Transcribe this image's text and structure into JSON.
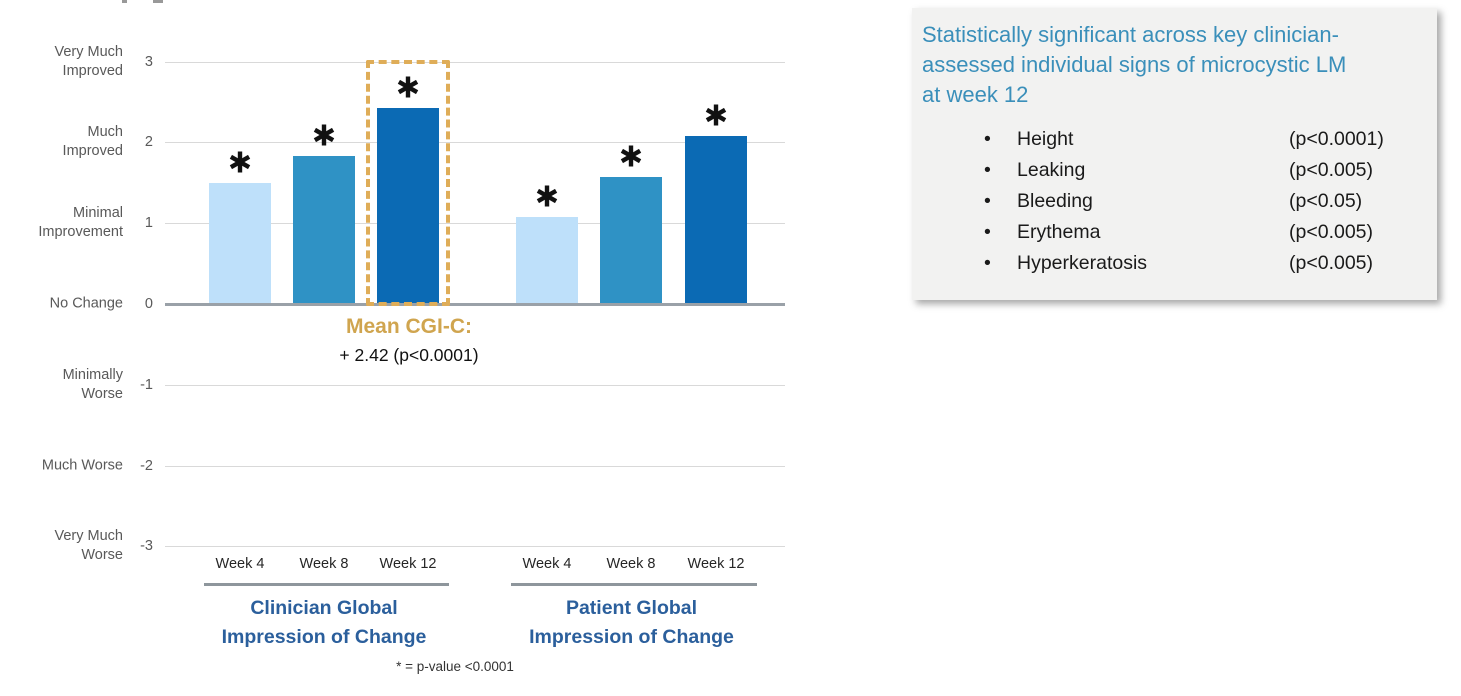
{
  "colors": {
    "bar_week4": "#BEE0FA",
    "bar_week8": "#2F92C5",
    "bar_week12": "#0B6AB4",
    "gridline": "#D9D9D9",
    "baseline": "#9AA1A8",
    "axis_text": "#595959",
    "group_title_blue": "#2B5F9C",
    "gold_dash": "#DFAD58",
    "gold_text": "#D0A54F",
    "callout_bg": "#F2F2F1",
    "callout_heading_blue": "#3A8FBA"
  },
  "chart_data": {
    "type": "bar",
    "y_axis": {
      "min": -3,
      "max": 3,
      "ticks": [
        {
          "value": 3,
          "label": "Very Much\nImproved"
        },
        {
          "value": 2,
          "label": "Much\nImproved"
        },
        {
          "value": 1,
          "label": "Minimal\nImprovement"
        },
        {
          "value": 0,
          "label": "No Change"
        },
        {
          "value": -1,
          "label": "Minimally\nWorse"
        },
        {
          "value": -2,
          "label": "Much Worse"
        },
        {
          "value": -3,
          "label": "Very Much\nWorse"
        }
      ]
    },
    "bar_palette": [
      "#BEE0FA",
      "#2F92C5",
      "#0B6AB4"
    ],
    "groups": [
      {
        "title": "Clinician Global\nImpression of Change",
        "bars": [
          {
            "category": "Week 4",
            "value": 1.5,
            "significant": true
          },
          {
            "category": "Week 8",
            "value": 1.83,
            "significant": true
          },
          {
            "category": "Week 12",
            "value": 2.42,
            "significant": true,
            "highlighted": true
          }
        ]
      },
      {
        "title": "Patient Global\nImpression of Change",
        "bars": [
          {
            "category": "Week 4",
            "value": 1.08,
            "significant": true
          },
          {
            "category": "Week 8",
            "value": 1.57,
            "significant": true
          },
          {
            "category": "Week 12",
            "value": 2.08,
            "significant": true
          }
        ]
      }
    ],
    "significance_marker": "*",
    "annotation": {
      "title": "Mean CGI-C:",
      "value": "+ 2.42 (p<0.0001)"
    },
    "footnote": "* = p-value <0.0001",
    "legend_position": "none",
    "grid": true
  },
  "callout": {
    "heading": "Statistically significant across key clinician-\nassessed individual signs of microcystic LM\nat week 12",
    "bullet": "•",
    "items": [
      {
        "sign": "Height",
        "p": "(p<0.0001)"
      },
      {
        "sign": "Leaking",
        "p": "(p<0.005)"
      },
      {
        "sign": "Bleeding",
        "p": "(p<0.05)"
      },
      {
        "sign": "Erythema",
        "p": "(p<0.005)"
      },
      {
        "sign": "Hyperkeratosis",
        "p": "(p<0.005)"
      }
    ]
  }
}
